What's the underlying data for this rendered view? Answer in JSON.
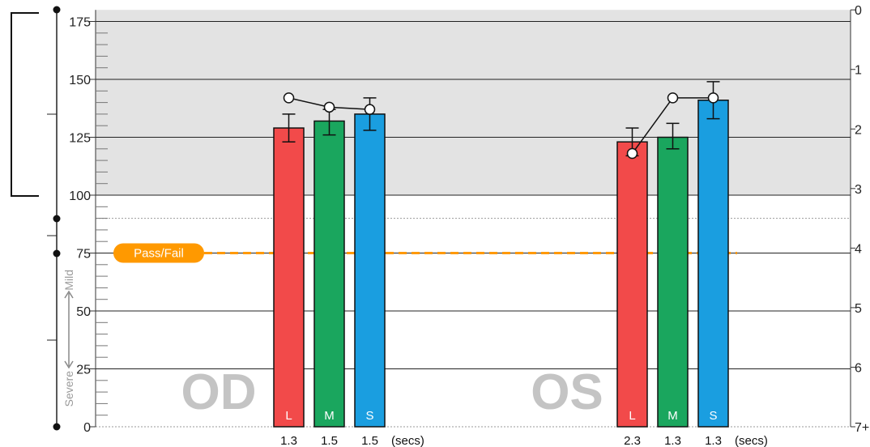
{
  "chart_data": {
    "type": "bar",
    "ylim": [
      0,
      180
    ],
    "y_ticks": [
      0,
      25,
      50,
      75,
      100,
      125,
      150,
      175
    ],
    "right_ticks": [
      "0",
      "1",
      "2",
      "3",
      "4",
      "5",
      "6",
      "7+"
    ],
    "shaded_band": [
      100,
      180
    ],
    "dotted_line": 90,
    "pass_fail": {
      "label": "Pass/Fail",
      "value": 75,
      "color": "#ff9900"
    },
    "severity_labels": {
      "mild": "Mild",
      "severe": "Severe"
    },
    "time_unit": "(secs)",
    "groups": [
      {
        "label": "OD",
        "bars": [
          {
            "letter": "L",
            "value": 129,
            "err_low": 123,
            "err_high": 135,
            "marker": 142,
            "time": "1.3",
            "color": "#f24a4a"
          },
          {
            "letter": "M",
            "value": 132,
            "err_low": 126,
            "err_high": 137,
            "marker": 138,
            "time": "1.5",
            "color": "#1aa65e"
          },
          {
            "letter": "S",
            "value": 135,
            "err_low": 128,
            "err_high": 142,
            "marker": 137,
            "time": "1.5",
            "color": "#1a9ee0"
          }
        ]
      },
      {
        "label": "OS",
        "bars": [
          {
            "letter": "L",
            "value": 123,
            "err_low": 117,
            "err_high": 129,
            "marker": 118,
            "time": "2.3",
            "color": "#f24a4a"
          },
          {
            "letter": "M",
            "value": 125,
            "err_low": 120,
            "err_high": 131,
            "marker": 142,
            "time": "1.3",
            "color": "#1aa65e"
          },
          {
            "letter": "S",
            "value": 141,
            "err_low": 133,
            "err_high": 149,
            "marker": 142,
            "time": "1.3",
            "color": "#1a9ee0"
          }
        ]
      }
    ]
  }
}
